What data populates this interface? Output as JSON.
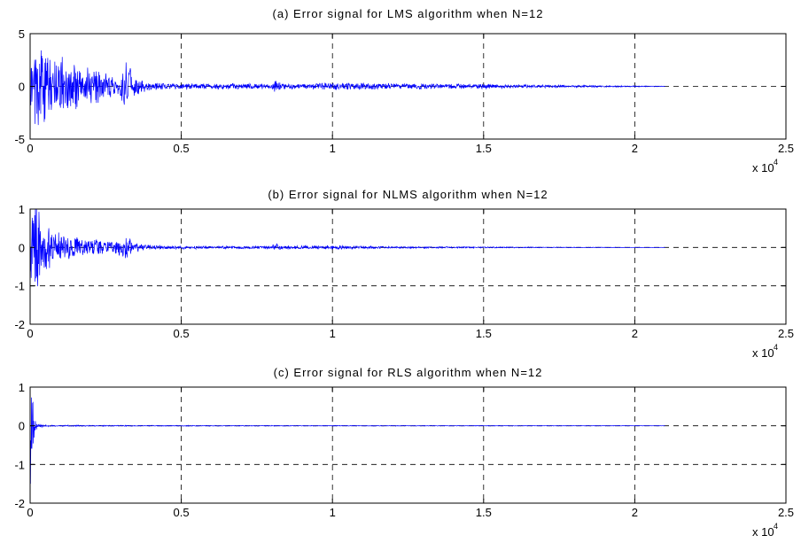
{
  "chart_data": [
    {
      "type": "line",
      "title": "(a) Error signal for LMS algorithm when N=12",
      "xlabel": "",
      "ylabel": "",
      "xlim": [
        0,
        25000
      ],
      "ylim": [
        -5,
        5
      ],
      "xticks": [
        0,
        5000,
        10000,
        15000,
        20000,
        25000
      ],
      "xtick_labels": [
        "0",
        "0.5",
        "1",
        "1.5",
        "2",
        "2.5"
      ],
      "yticks": [
        -5,
        0,
        5
      ],
      "ytick_labels": [
        "-5",
        "0",
        "5"
      ],
      "x_multiplier_label": "x 10",
      "x_multiplier_exponent": "4",
      "grid": true,
      "series_color": "#0000ff",
      "series": [
        {
          "name": "",
          "x": [
            0,
            200,
            400,
            600,
            800,
            1000,
            1300,
            1600,
            2000,
            2400,
            2800,
            3000,
            3100,
            3200,
            3300,
            3400,
            4000,
            5000,
            6000,
            7000,
            8000,
            8100,
            8300,
            9000,
            10000,
            11000,
            12000,
            13000,
            14000,
            15000,
            16000,
            17000,
            18000,
            19000,
            20000,
            21000
          ],
          "envelope": [
            3.5,
            3.8,
            4.2,
            3.9,
            3.2,
            3.0,
            2.6,
            2.2,
            1.8,
            1.5,
            1.2,
            1.8,
            3.2,
            2.6,
            2.2,
            1.0,
            0.45,
            0.35,
            0.3,
            0.3,
            0.28,
            0.9,
            0.3,
            0.28,
            0.42,
            0.35,
            0.32,
            0.3,
            0.26,
            0.25,
            0.2,
            0.16,
            0.12,
            0.09,
            0.06,
            0.03
          ]
        }
      ]
    },
    {
      "type": "line",
      "title": "(b) Error signal for NLMS algorithm when N=12",
      "xlabel": "",
      "ylabel": "",
      "xlim": [
        0,
        25000
      ],
      "ylim": [
        -2,
        1
      ],
      "xticks": [
        0,
        5000,
        10000,
        15000,
        20000,
        25000
      ],
      "xtick_labels": [
        "0",
        "0.5",
        "1",
        "1.5",
        "2",
        "2.5"
      ],
      "yticks": [
        -2,
        -1,
        0,
        1
      ],
      "ytick_labels": [
        "-2",
        "-1",
        "0",
        "1"
      ],
      "x_multiplier_label": "x 10",
      "x_multiplier_exponent": "4",
      "grid": true,
      "series_color": "#0000ff",
      "series": [
        {
          "name": "",
          "x": [
            0,
            100,
            200,
            300,
            500,
            800,
            1200,
            1600,
            2000,
            2400,
            2800,
            3000,
            3100,
            3200,
            3300,
            3400,
            4000,
            5000,
            6000,
            7000,
            8000,
            8100,
            8300,
            9000,
            10000,
            11000,
            12000,
            13000,
            14000,
            15000,
            16000,
            17000,
            18000,
            19000,
            20000,
            21000
          ],
          "envelope": [
            1.5,
            1.7,
            1.4,
            1.0,
            0.7,
            0.5,
            0.4,
            0.3,
            0.26,
            0.22,
            0.2,
            0.26,
            0.5,
            0.4,
            0.3,
            0.15,
            0.07,
            0.05,
            0.04,
            0.04,
            0.04,
            0.16,
            0.05,
            0.05,
            0.06,
            0.05,
            0.03,
            0.025,
            0.02,
            0.02,
            0.015,
            0.012,
            0.01,
            0.008,
            0.006,
            0.004
          ]
        }
      ]
    },
    {
      "type": "line",
      "title": "(c) Error signal for RLS algorithm when N=12",
      "xlabel": "",
      "ylabel": "",
      "xlim": [
        0,
        25000
      ],
      "ylim": [
        -2,
        1
      ],
      "xticks": [
        0,
        5000,
        10000,
        15000,
        20000,
        25000
      ],
      "xtick_labels": [
        "0",
        "0.5",
        "1",
        "1.5",
        "2",
        "2.5"
      ],
      "yticks": [
        -2,
        -1,
        0,
        1
      ],
      "ytick_labels": [
        "-2",
        "-1",
        "0",
        "1"
      ],
      "x_multiplier_label": "x 10",
      "x_multiplier_exponent": "4",
      "grid": true,
      "series_color": "#0000ff",
      "series": [
        {
          "name": "",
          "x": [
            0,
            40,
            80,
            120,
            200,
            300,
            500,
            1000,
            2000,
            5000,
            10000,
            15000,
            20000,
            21000
          ],
          "envelope": [
            1.9,
            1.7,
            1.0,
            0.4,
            0.12,
            0.05,
            0.025,
            0.02,
            0.015,
            0.012,
            0.01,
            0.008,
            0.006,
            0.004
          ]
        }
      ]
    }
  ]
}
